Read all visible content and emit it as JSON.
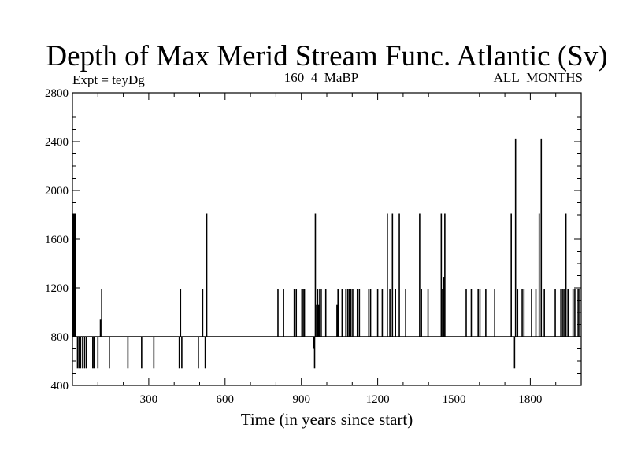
{
  "chart_data": {
    "type": "line",
    "title": "Depth of Max Merid Stream Func. Atlantic (Sv)",
    "left_label": "Expt = teyDg",
    "center_label": "160_4_MaBP",
    "right_label": "ALL_MONTHS",
    "xlabel": "Time (in years since start)",
    "ylabel": "",
    "xlim": [
      0,
      2000
    ],
    "ylim": [
      400,
      2800
    ],
    "x_ticks": [
      300,
      600,
      900,
      1200,
      1500,
      1800
    ],
    "y_ticks": [
      400,
      800,
      1200,
      1600,
      2000,
      2400,
      2800
    ],
    "baseline": 800,
    "series": [
      {
        "name": "depth",
        "spikes": [
          {
            "x": 2,
            "y": 1810
          },
          {
            "x": 4,
            "y": 1810
          },
          {
            "x": 6,
            "y": 1810
          },
          {
            "x": 8,
            "y": 1810
          },
          {
            "x": 10,
            "y": 1810
          },
          {
            "x": 12,
            "y": 1810
          },
          {
            "x": 20,
            "y": 540
          },
          {
            "x": 26,
            "y": 540
          },
          {
            "x": 32,
            "y": 540
          },
          {
            "x": 40,
            "y": 540
          },
          {
            "x": 48,
            "y": 540
          },
          {
            "x": 55,
            "y": 540
          },
          {
            "x": 80,
            "y": 540
          },
          {
            "x": 85,
            "y": 540
          },
          {
            "x": 100,
            "y": 540
          },
          {
            "x": 110,
            "y": 940
          },
          {
            "x": 115,
            "y": 1190
          },
          {
            "x": 145,
            "y": 540
          },
          {
            "x": 218,
            "y": 540
          },
          {
            "x": 272,
            "y": 540
          },
          {
            "x": 320,
            "y": 540
          },
          {
            "x": 420,
            "y": 540
          },
          {
            "x": 425,
            "y": 1190
          },
          {
            "x": 430,
            "y": 540
          },
          {
            "x": 495,
            "y": 540
          },
          {
            "x": 512,
            "y": 1190
          },
          {
            "x": 522,
            "y": 540
          },
          {
            "x": 528,
            "y": 1810
          },
          {
            "x": 808,
            "y": 1190
          },
          {
            "x": 830,
            "y": 1190
          },
          {
            "x": 872,
            "y": 1190
          },
          {
            "x": 880,
            "y": 1190
          },
          {
            "x": 902,
            "y": 1190
          },
          {
            "x": 907,
            "y": 1190
          },
          {
            "x": 912,
            "y": 1190
          },
          {
            "x": 948,
            "y": 700
          },
          {
            "x": 952,
            "y": 540
          },
          {
            "x": 955,
            "y": 1810
          },
          {
            "x": 960,
            "y": 1060
          },
          {
            "x": 964,
            "y": 1190
          },
          {
            "x": 968,
            "y": 1060
          },
          {
            "x": 972,
            "y": 1190
          },
          {
            "x": 978,
            "y": 1190
          },
          {
            "x": 996,
            "y": 1190
          },
          {
            "x": 1040,
            "y": 1060
          },
          {
            "x": 1044,
            "y": 1190
          },
          {
            "x": 1060,
            "y": 1190
          },
          {
            "x": 1075,
            "y": 1190
          },
          {
            "x": 1082,
            "y": 1190
          },
          {
            "x": 1088,
            "y": 1190
          },
          {
            "x": 1095,
            "y": 1190
          },
          {
            "x": 1102,
            "y": 1190
          },
          {
            "x": 1120,
            "y": 1190
          },
          {
            "x": 1128,
            "y": 1190
          },
          {
            "x": 1165,
            "y": 1190
          },
          {
            "x": 1172,
            "y": 1190
          },
          {
            "x": 1200,
            "y": 1190
          },
          {
            "x": 1218,
            "y": 1190
          },
          {
            "x": 1238,
            "y": 1810
          },
          {
            "x": 1248,
            "y": 1190
          },
          {
            "x": 1258,
            "y": 1810
          },
          {
            "x": 1270,
            "y": 1190
          },
          {
            "x": 1285,
            "y": 1810
          },
          {
            "x": 1310,
            "y": 1190
          },
          {
            "x": 1365,
            "y": 1810
          },
          {
            "x": 1372,
            "y": 1190
          },
          {
            "x": 1398,
            "y": 1190
          },
          {
            "x": 1450,
            "y": 1810
          },
          {
            "x": 1455,
            "y": 1190
          },
          {
            "x": 1460,
            "y": 1290
          },
          {
            "x": 1464,
            "y": 1810
          },
          {
            "x": 1548,
            "y": 1190
          },
          {
            "x": 1568,
            "y": 1190
          },
          {
            "x": 1595,
            "y": 1190
          },
          {
            "x": 1602,
            "y": 1190
          },
          {
            "x": 1625,
            "y": 1190
          },
          {
            "x": 1660,
            "y": 1190
          },
          {
            "x": 1725,
            "y": 1810
          },
          {
            "x": 1738,
            "y": 540
          },
          {
            "x": 1742,
            "y": 2420
          },
          {
            "x": 1750,
            "y": 1190
          },
          {
            "x": 1768,
            "y": 1190
          },
          {
            "x": 1775,
            "y": 1190
          },
          {
            "x": 1805,
            "y": 1190
          },
          {
            "x": 1822,
            "y": 1190
          },
          {
            "x": 1835,
            "y": 1810
          },
          {
            "x": 1843,
            "y": 2420
          },
          {
            "x": 1855,
            "y": 1190
          },
          {
            "x": 1898,
            "y": 1190
          },
          {
            "x": 1920,
            "y": 1190
          },
          {
            "x": 1926,
            "y": 1190
          },
          {
            "x": 1932,
            "y": 1190
          },
          {
            "x": 1940,
            "y": 1810
          },
          {
            "x": 1948,
            "y": 1190
          },
          {
            "x": 1968,
            "y": 1190
          },
          {
            "x": 1975,
            "y": 1190
          },
          {
            "x": 1988,
            "y": 1190
          },
          {
            "x": 1994,
            "y": 1190
          }
        ]
      }
    ]
  }
}
